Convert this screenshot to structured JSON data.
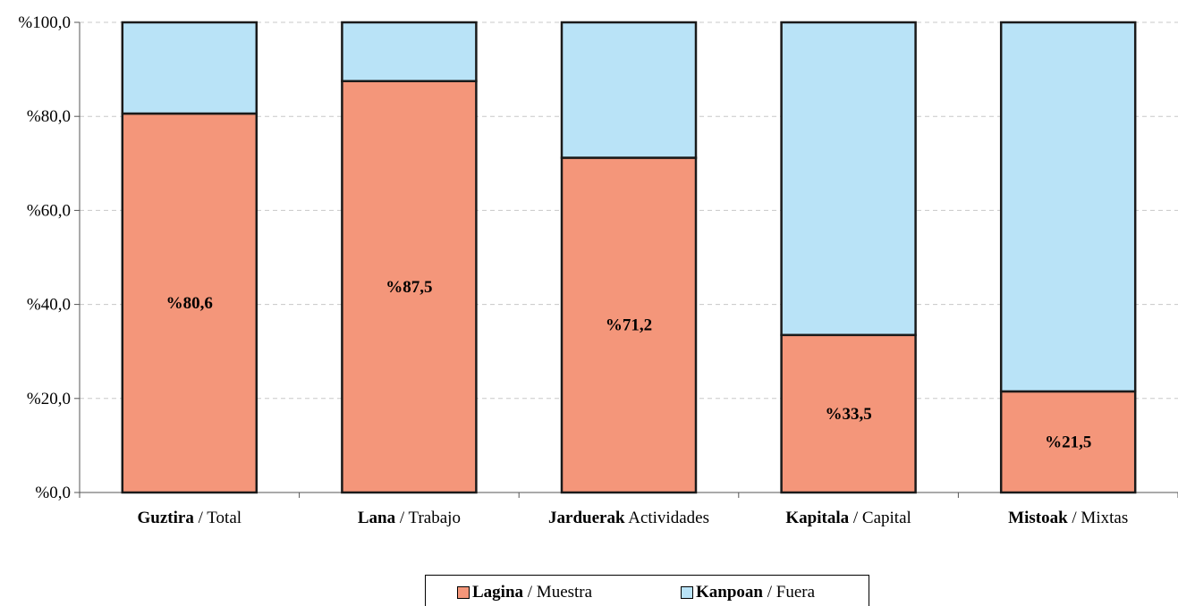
{
  "chart_data": {
    "type": "bar",
    "stacked": true,
    "categories": [
      {
        "bold": "Guztira",
        "rest": " / Total"
      },
      {
        "bold": "Lana",
        "rest": " / Trabajo"
      },
      {
        "bold": "Jarduerak",
        "rest": "  Actividades"
      },
      {
        "bold": "Kapitala",
        "rest": " / Capital"
      },
      {
        "bold": "Mistoak",
        "rest": " / Mixtas"
      }
    ],
    "series": [
      {
        "name": "Lagina / Muestra",
        "name_bold": "Lagina",
        "name_rest": " / Muestra",
        "color": "#f4967a",
        "values": [
          80.6,
          87.5,
          71.2,
          33.5,
          21.5
        ],
        "labels": [
          "%80,6",
          "%87,5",
          "%71,2",
          "%33,5",
          "%21,5"
        ]
      },
      {
        "name": "Kanpoan / Fuera",
        "name_bold": "Kanpoan",
        "name_rest": " / Fuera",
        "color": "#b9e3f7",
        "values": [
          19.4,
          12.5,
          28.8,
          66.5,
          78.5
        ]
      }
    ],
    "yticks": [
      "%0,0",
      "%20,0",
      "%40,0",
      "%60,0",
      "%80,0",
      "%100,0"
    ],
    "ylim": [
      0,
      100
    ],
    "grid": true,
    "legend_position": "bottom"
  }
}
